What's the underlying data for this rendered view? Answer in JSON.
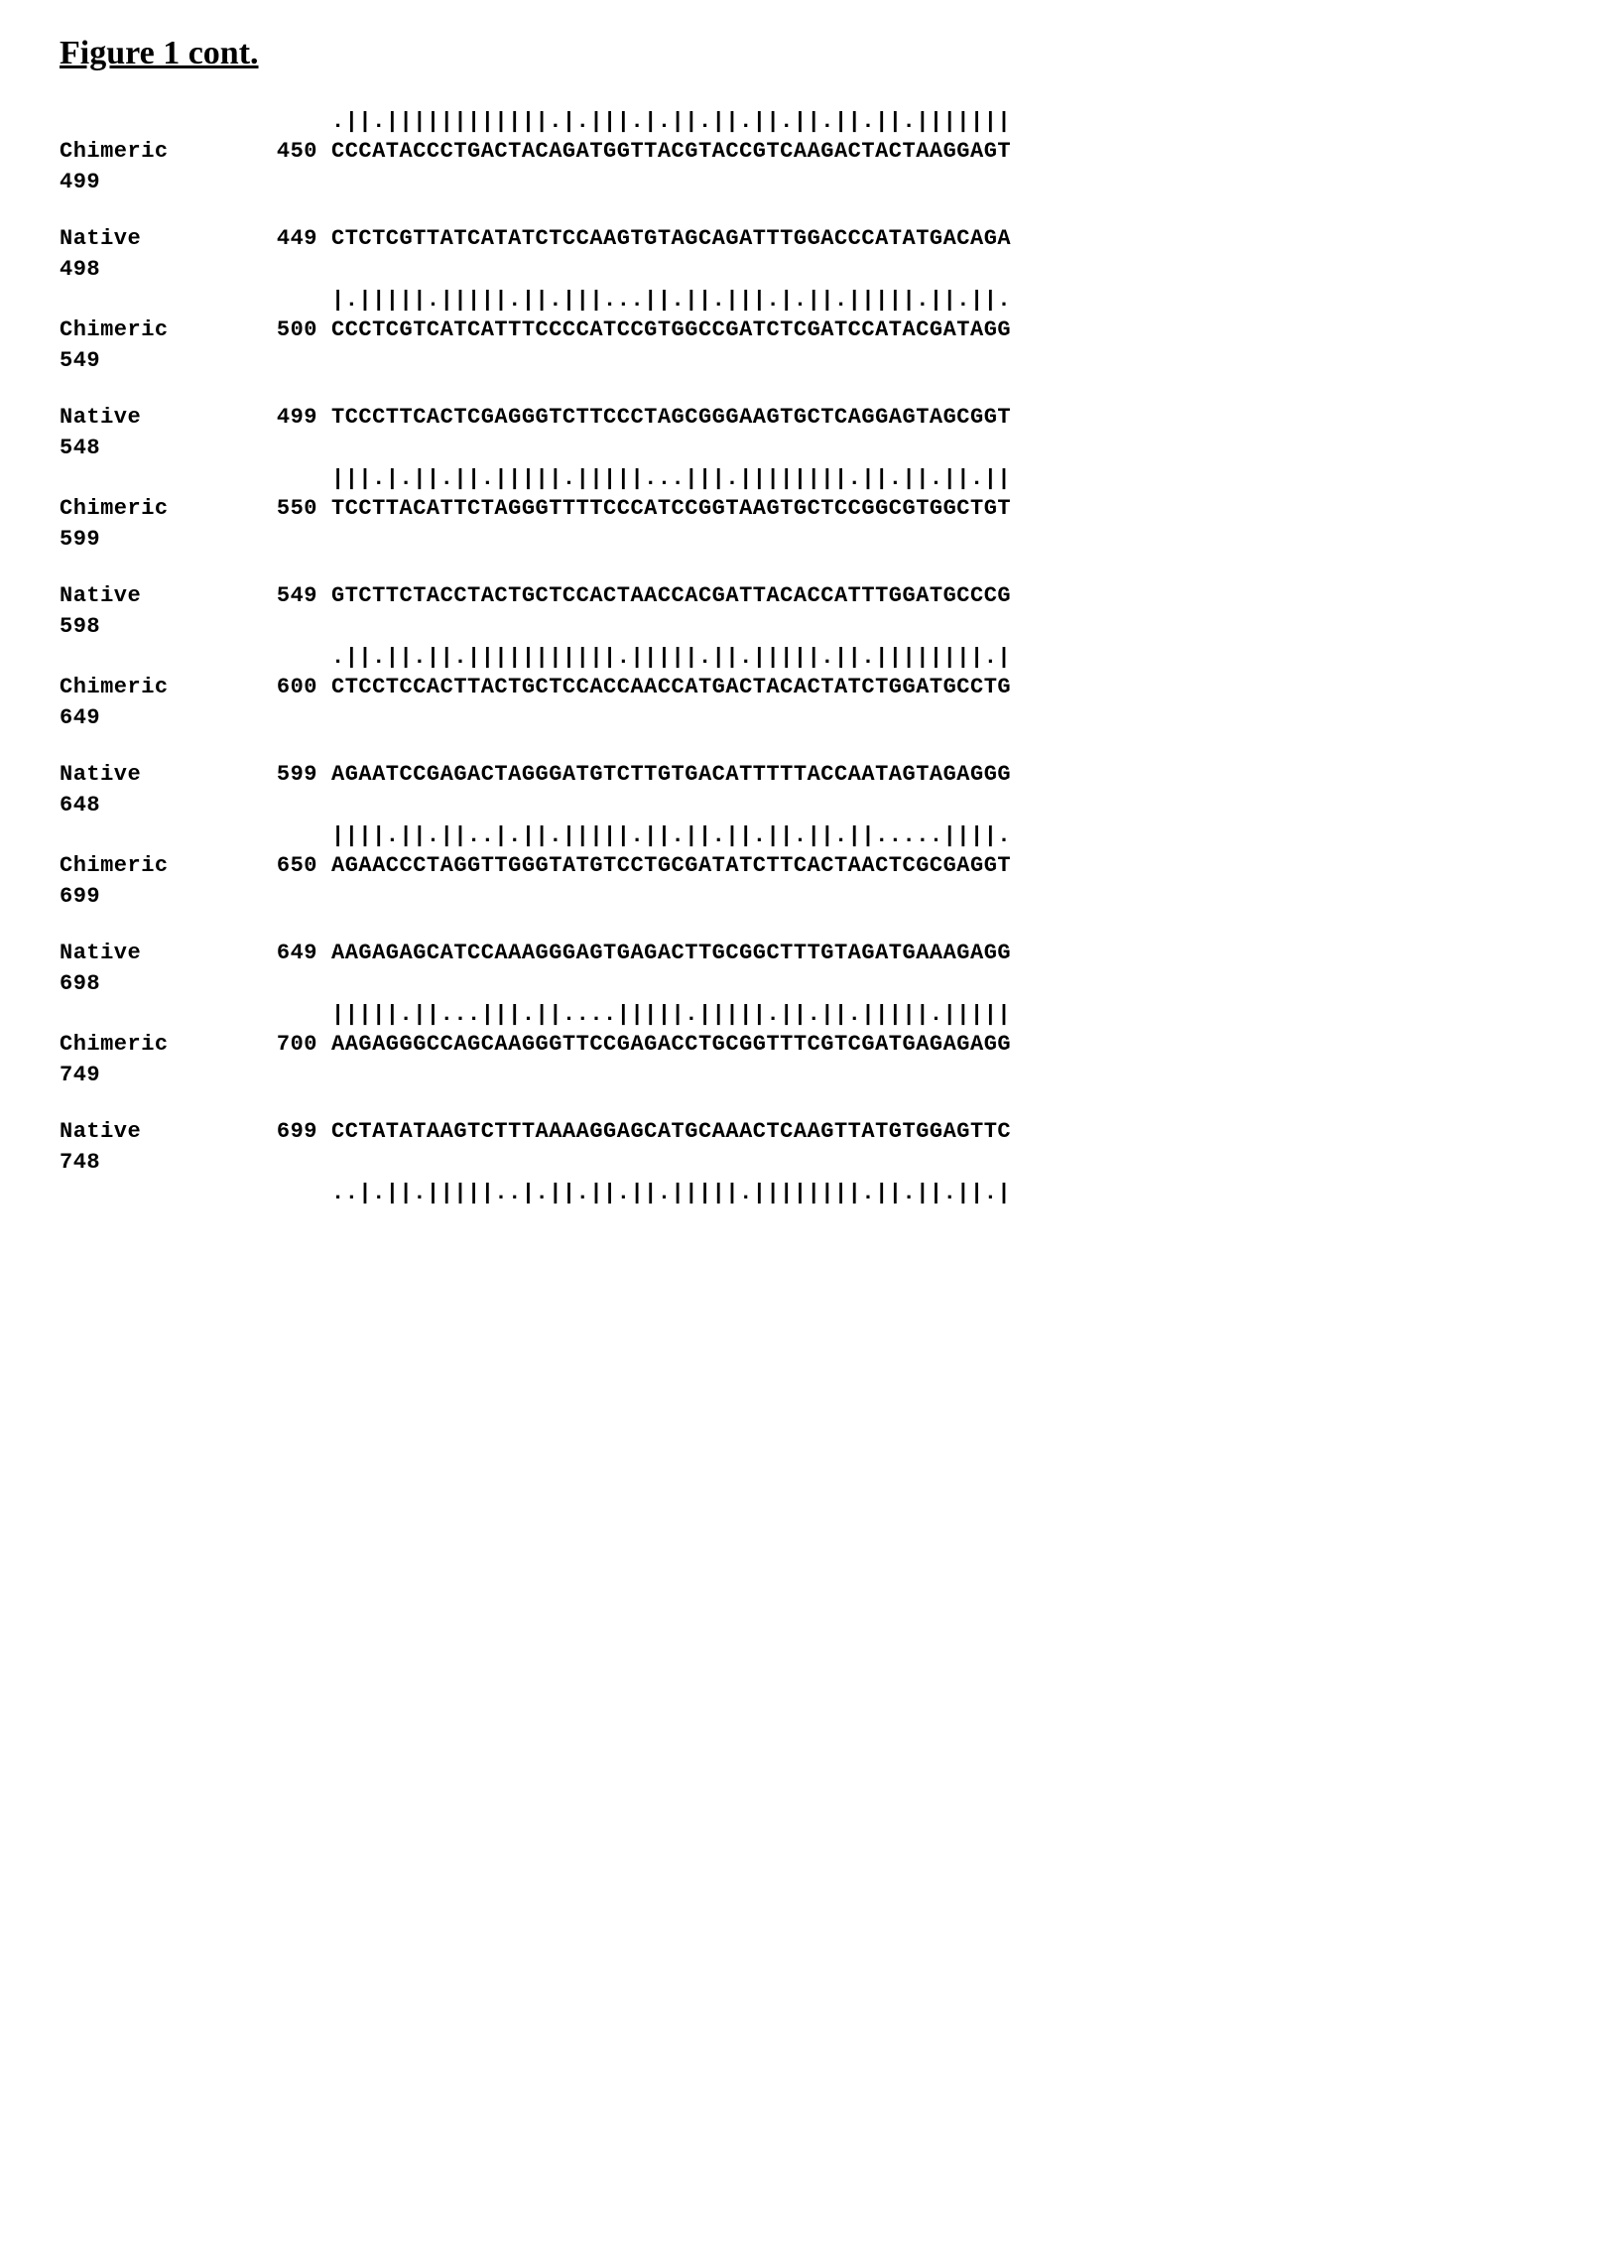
{
  "title": "Figure 1 cont.",
  "label_chimeric": "Chimeric",
  "label_native": "Native",
  "blocks": [
    {
      "match": ".||.||||||||||||.|.|||.|.||.||.||.||.||.||.|||||||",
      "chi_start": "450",
      "chi_seq": "CCCATACCCTGACTACAGATGGTTACGTACCGTCAAGACTACTAAGGAGT",
      "chi_end": "499"
    },
    {
      "nat_start": "449",
      "nat_seq": "CTCTCGTTATCATATCTCCAAGTGTAGCAGATTTGGACCCATATGACAGA",
      "nat_end": "498",
      "match": "|.|||||.|||||.||.|||...||.||.|||.|.||.|||||.||.||.",
      "chi_start": "500",
      "chi_seq": "CCCTCGTCATCATTTCCCCATCCGTGGCCGATCTCGATCCATACGATAGG",
      "chi_end": "549"
    },
    {
      "nat_start": "499",
      "nat_seq": "TCCCTTCACTCGAGGGTCTTCCCTAGCGGGAAGTGCTCAGGAGTAGCGGT",
      "nat_end": "548",
      "match": "|||.|.||.||.|||||.|||||...|||.||||||||.||.||.||.||",
      "chi_start": "550",
      "chi_seq": "TCCTTACATTCTAGGGTTTTCCCATCCGGTAAGTGCTCCGGCGTGGCTGT",
      "chi_end": "599"
    },
    {
      "nat_start": "549",
      "nat_seq": "GTCTTCTACCTACTGCTCCACTAACCACGATTACACCATTTGGATGCCCG",
      "nat_end": "598",
      "match": ".||.||.||.|||||||||||.|||||.||.|||||.||.||||||||.|",
      "chi_start": "600",
      "chi_seq": "CTCCTCCACTTACTGCTCCACCAACCATGACTACACTATCTGGATGCCTG",
      "chi_end": "649"
    },
    {
      "nat_start": "599",
      "nat_seq": "AGAATCCGAGACTAGGGATGTCTTGTGACATTTTTACCAATAGTAGAGGG",
      "nat_end": "648",
      "match": "||||.||.||..|.||.|||||.||.||.||.||.||.||.....||||.",
      "chi_start": "650",
      "chi_seq": "AGAACCCTAGGTTGGGTATGTCCTGCGATATCTTCACTAACTCGCGAGGT",
      "chi_end": "699"
    },
    {
      "nat_start": "649",
      "nat_seq": "AAGAGAGCATCCAAAGGGAGTGAGACTTGCGGCTTTGTAGATGAAAGAGG",
      "nat_end": "698",
      "match": "|||||.||...|||.||....|||||.|||||.||.||.|||||.|||||",
      "chi_start": "700",
      "chi_seq": "AAGAGGGCCAGCAAGGGTTCCGAGACCTGCGGTTTCGTCGATGAGAGAGG",
      "chi_end": "749"
    },
    {
      "nat_start": "699",
      "nat_seq": "CCTATATAAGTCTTTAAAAGGAGCATGCAAACTCAAGTTATGTGGAGTTC",
      "nat_end": "748",
      "match": "..|.||.|||||..|.||.||.||.|||||.||||||||.||.||.||.|"
    }
  ]
}
